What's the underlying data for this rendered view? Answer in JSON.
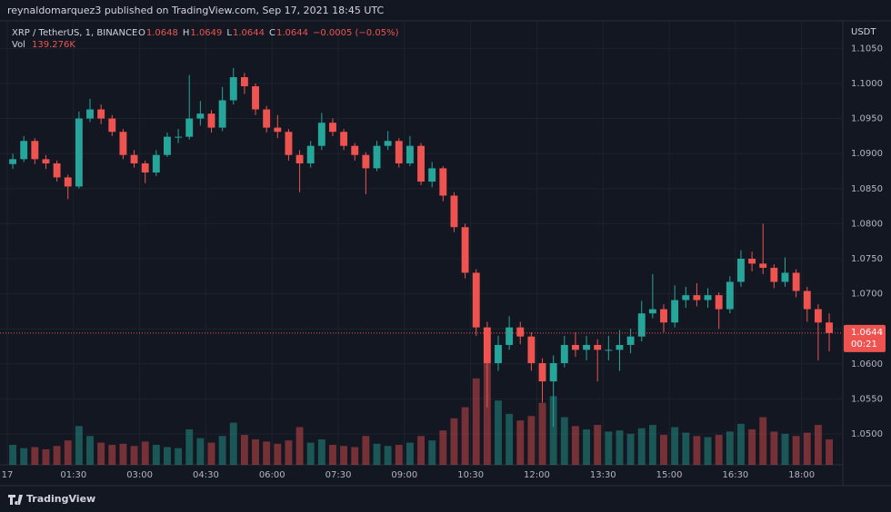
{
  "header": {
    "publisher": "reynaldomarquez3 published on TradingView.com, Sep 17, 2021 18:45 UTC"
  },
  "footer": {
    "brand": "TradingView"
  },
  "chart_data": {
    "type": "candlestick",
    "symbol": "XRP / TetherUS, 1, BINANCE",
    "ohlc_legend": [
      {
        "label": "O",
        "value": "1.0648"
      },
      {
        "label": "H",
        "value": "1.0649"
      },
      {
        "label": "L",
        "value": "1.0644"
      },
      {
        "label": "C",
        "value": "1.0644"
      }
    ],
    "change": "−0.0005 (−0.05%)",
    "volume_label": "Vol",
    "volume_value": "139.276K",
    "currency": "USDT",
    "last_price": 1.0644,
    "countdown": "00:21",
    "up_color": "#26a69a",
    "down_color": "#ef5350",
    "x": [
      "00:00",
      "00:15",
      "00:30",
      "00:45",
      "01:00",
      "01:15",
      "01:30",
      "01:45",
      "02:00",
      "02:15",
      "02:30",
      "02:45",
      "03:00",
      "03:15",
      "03:30",
      "03:45",
      "04:00",
      "04:15",
      "04:30",
      "04:45",
      "05:00",
      "05:15",
      "05:30",
      "05:45",
      "06:00",
      "06:15",
      "06:30",
      "06:45",
      "07:00",
      "07:15",
      "07:30",
      "07:45",
      "08:00",
      "08:15",
      "08:30",
      "08:45",
      "09:00",
      "09:15",
      "09:30",
      "09:45",
      "10:00",
      "10:15",
      "10:30",
      "10:45",
      "11:00",
      "11:15",
      "11:30",
      "11:45",
      "12:00",
      "12:15",
      "12:30",
      "12:45",
      "13:00",
      "13:15",
      "13:30",
      "13:45",
      "14:00",
      "14:15",
      "14:30",
      "14:45",
      "15:00",
      "15:15",
      "15:30",
      "15:45",
      "16:00",
      "16:15",
      "16:30",
      "16:45",
      "17:00",
      "17:15",
      "17:30",
      "17:45",
      "18:00",
      "18:15",
      "18:30"
    ],
    "open": [
      1.0885,
      1.0892,
      1.0918,
      1.0892,
      1.0886,
      1.0866,
      1.0853,
      1.095,
      1.0963,
      1.095,
      1.0931,
      1.0898,
      1.0886,
      1.0873,
      1.0898,
      1.0924,
      1.0924,
      1.095,
      1.0957,
      1.0937,
      1.0976,
      1.1009,
      1.0996,
      1.0963,
      1.0937,
      1.0931,
      1.0898,
      1.0886,
      1.0911,
      1.0944,
      1.0931,
      1.0911,
      1.0898,
      1.0879,
      1.0911,
      1.0918,
      1.0886,
      1.0911,
      1.086,
      1.0879,
      1.084,
      1.0795,
      1.073,
      1.0652,
      1.0601,
      1.0627,
      1.0652,
      1.0639,
      1.0601,
      1.0575,
      1.0601,
      1.0627,
      1.062,
      1.0627,
      1.062,
      1.062,
      1.0627,
      1.0639,
      1.0672,
      1.0678,
      1.0659,
      1.0691,
      1.0698,
      1.0691,
      1.0698,
      1.0678,
      1.0717,
      1.075,
      1.0743,
      1.0737,
      1.0717,
      1.073,
      1.0704,
      1.0678,
      1.0659
    ],
    "high": [
      1.09,
      1.0925,
      1.0922,
      1.0898,
      1.089,
      1.087,
      1.096,
      1.0978,
      1.097,
      1.0955,
      1.0935,
      1.0905,
      1.089,
      1.0905,
      1.093,
      1.0935,
      1.1012,
      1.0975,
      1.0962,
      1.0995,
      1.1022,
      1.1015,
      1.1,
      1.0968,
      1.0955,
      1.0935,
      1.0905,
      1.0918,
      1.0958,
      1.095,
      1.0935,
      1.0915,
      1.0902,
      1.0918,
      1.0932,
      1.0922,
      1.0925,
      1.0915,
      1.0888,
      1.0882,
      1.0845,
      1.08,
      1.0735,
      1.066,
      1.064,
      1.0668,
      1.066,
      1.0645,
      1.0608,
      1.0612,
      1.064,
      1.0645,
      1.064,
      1.0635,
      1.064,
      1.0648,
      1.065,
      1.069,
      1.0728,
      1.0685,
      1.0712,
      1.071,
      1.0715,
      1.0708,
      1.0702,
      1.0725,
      1.0762,
      1.076,
      1.08,
      1.0742,
      1.0752,
      1.0735,
      1.071,
      1.0685,
      1.0672
    ],
    "low": [
      1.0878,
      1.0888,
      1.0885,
      1.0878,
      1.086,
      1.0835,
      1.085,
      1.0945,
      1.0942,
      1.0925,
      1.0892,
      1.088,
      1.0858,
      1.0868,
      1.0895,
      1.0915,
      1.092,
      1.094,
      1.093,
      1.0932,
      1.097,
      1.0985,
      1.0955,
      1.093,
      1.0922,
      1.089,
      1.0845,
      1.088,
      1.0905,
      1.0925,
      1.0905,
      1.089,
      1.0842,
      1.0875,
      1.0905,
      1.088,
      1.0882,
      1.0855,
      1.0852,
      1.0832,
      1.0788,
      1.0722,
      1.064,
      1.0538,
      1.059,
      1.062,
      1.0628,
      1.059,
      1.0545,
      1.051,
      1.0595,
      1.061,
      1.0605,
      1.0575,
      1.0605,
      1.059,
      1.0615,
      1.0632,
      1.0665,
      1.0645,
      1.0652,
      1.068,
      1.0682,
      1.068,
      1.065,
      1.0672,
      1.071,
      1.0732,
      1.0728,
      1.0708,
      1.071,
      1.0695,
      1.066,
      1.0605,
      1.0618
    ],
    "close": [
      1.0892,
      1.0918,
      1.0892,
      1.0886,
      1.0866,
      1.0853,
      1.095,
      1.0963,
      1.095,
      1.0931,
      1.0898,
      1.0886,
      1.0873,
      1.0898,
      1.0924,
      1.0924,
      1.095,
      1.0957,
      1.0937,
      1.0976,
      1.1009,
      1.0996,
      1.0963,
      1.0937,
      1.0931,
      1.0898,
      1.0886,
      1.0911,
      1.0944,
      1.0931,
      1.0911,
      1.0898,
      1.0879,
      1.0911,
      1.0918,
      1.0886,
      1.0911,
      1.086,
      1.0879,
      1.084,
      1.0795,
      1.073,
      1.0652,
      1.0601,
      1.0627,
      1.0652,
      1.0639,
      1.0601,
      1.0575,
      1.0601,
      1.0627,
      1.062,
      1.0627,
      1.062,
      1.062,
      1.0627,
      1.0639,
      1.0672,
      1.0678,
      1.0659,
      1.0691,
      1.0698,
      1.0691,
      1.0698,
      1.0678,
      1.0717,
      1.075,
      1.0743,
      1.0737,
      1.0717,
      1.073,
      1.0704,
      1.0678,
      1.0659,
      1.0644
    ],
    "volume": [
      1800,
      1500,
      1600,
      1400,
      1700,
      2200,
      3500,
      2600,
      2000,
      1800,
      1900,
      1700,
      2100,
      1800,
      1600,
      1500,
      3200,
      2400,
      2000,
      2600,
      3800,
      2700,
      2300,
      2100,
      1900,
      2200,
      3400,
      2000,
      2300,
      1800,
      1700,
      1600,
      2600,
      1900,
      1700,
      1800,
      2000,
      2600,
      2200,
      3100,
      4200,
      5200,
      7800,
      9200,
      5800,
      4600,
      4000,
      4400,
      5600,
      6200,
      4300,
      3500,
      3200,
      3600,
      3000,
      3100,
      2800,
      3300,
      3600,
      2700,
      3400,
      2900,
      2600,
      2500,
      2700,
      3000,
      3700,
      3200,
      4300,
      3000,
      2800,
      2600,
      2900,
      3600,
      2300
    ],
    "volume_lim": [
      0,
      40000
    ],
    "xlim": [
      "00:00",
      "18:56"
    ],
    "xticks": [
      {
        "value": "00:00",
        "label": "17"
      },
      "01:30",
      "03:00",
      "04:30",
      "06:00",
      "07:30",
      "09:00",
      "10:30",
      "12:00",
      "13:30",
      "15:00",
      "16:30",
      "18:00"
    ],
    "ylim": [
      1.0456,
      1.1088
    ],
    "yticks": [
      {
        "value": 1.05,
        "label": "1.0500"
      },
      {
        "value": 1.055,
        "label": "1.0550"
      },
      {
        "value": 1.06,
        "label": "1.0600"
      },
      {
        "value": 1.065,
        "label": "1.0650"
      },
      {
        "value": 1.07,
        "label": "1.0700"
      },
      {
        "value": 1.075,
        "label": "1.0750"
      },
      {
        "value": 1.08,
        "label": "1.0800"
      },
      {
        "value": 1.085,
        "label": "1.0850"
      },
      {
        "value": 1.09,
        "label": "1.0900"
      },
      {
        "value": 1.095,
        "label": "1.0950"
      },
      {
        "value": 1.1,
        "label": "1.1000"
      },
      {
        "value": 1.105,
        "label": "1.1050"
      }
    ],
    "grid": true
  }
}
